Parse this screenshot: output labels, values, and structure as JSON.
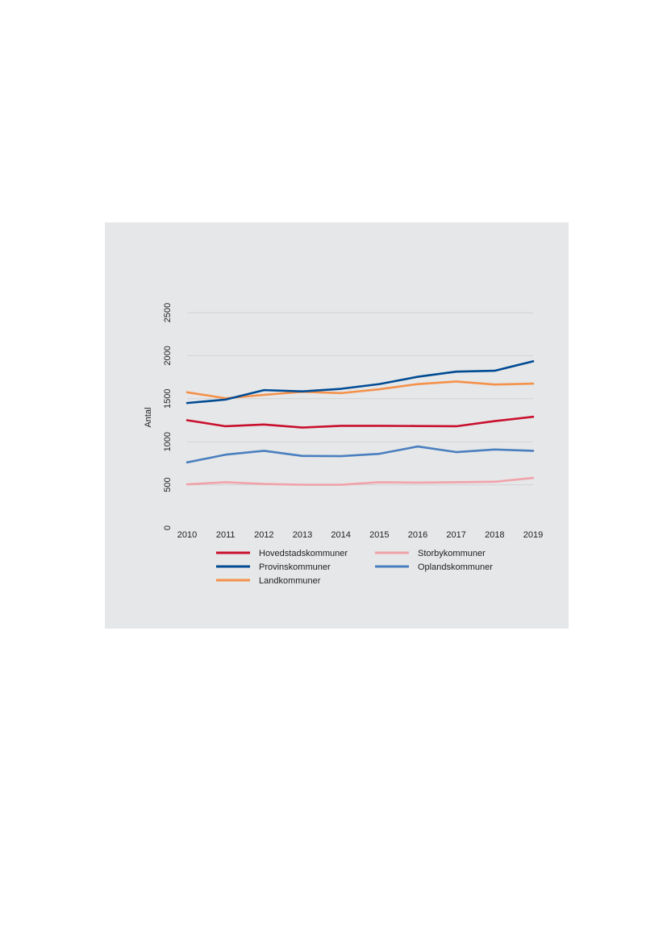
{
  "chart_data": {
    "type": "line",
    "title": "",
    "xlabel": "",
    "ylabel": "Antal",
    "ylim": [
      0,
      2500
    ],
    "yticks": [
      0,
      500,
      1000,
      1500,
      2000,
      2500
    ],
    "grid": true,
    "legend_position": "bottom",
    "x": [
      "2010",
      "2011",
      "2012",
      "2013",
      "2014",
      "2015",
      "2016",
      "2017",
      "2018",
      "2019"
    ],
    "series": [
      {
        "name": "Hovedstadskommuner",
        "color": "#c8102e",
        "values": [
          1250,
          1180,
          1200,
          1165,
          1185,
          1185,
          1183,
          1180,
          1240,
          1290
        ]
      },
      {
        "name": "Storbykommuner",
        "color": "#f0a3aa",
        "values": [
          505,
          530,
          510,
          500,
          500,
          530,
          525,
          530,
          535,
          580
        ]
      },
      {
        "name": "Provinskommuner",
        "color": "#004b93",
        "values": [
          1450,
          1490,
          1600,
          1585,
          1615,
          1670,
          1755,
          1815,
          1825,
          1935
        ]
      },
      {
        "name": "Oplandskommuner",
        "color": "#4a7fbf",
        "values": [
          760,
          850,
          895,
          835,
          833,
          860,
          945,
          880,
          910,
          895
        ]
      },
      {
        "name": "Landkommuner",
        "color": "#f4914b",
        "values": [
          1575,
          1505,
          1545,
          1580,
          1565,
          1610,
          1670,
          1700,
          1665,
          1675
        ]
      }
    ]
  }
}
